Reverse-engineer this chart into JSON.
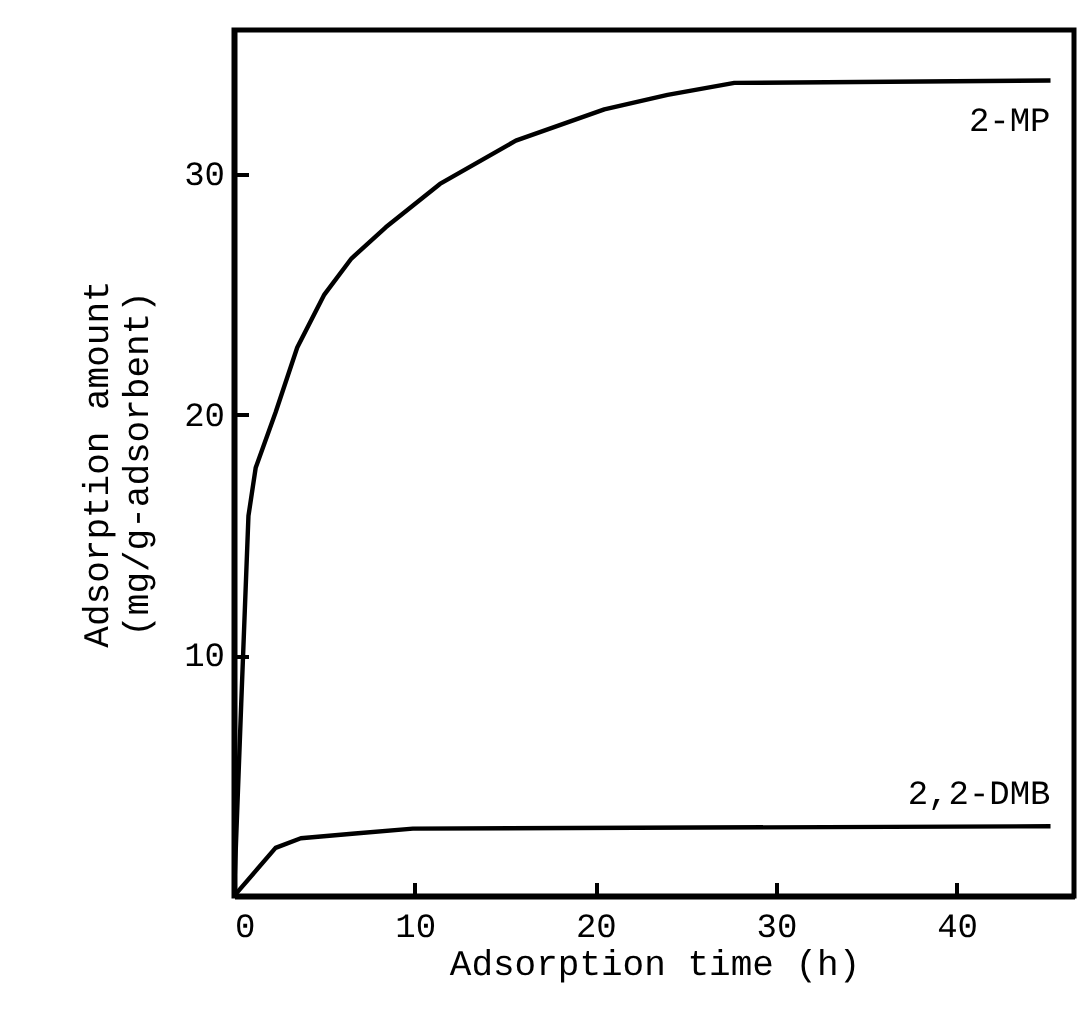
{
  "chart_data": {
    "type": "line",
    "xlabel": "Adsorption time (h)",
    "ylabel": "Adsorption amount\n(mg/g-adsorbent)",
    "xlim": [
      0,
      46.5
    ],
    "ylim": [
      0,
      36
    ],
    "xticks": [
      0,
      10,
      20,
      30,
      40
    ],
    "yticks": [
      10,
      20,
      30
    ],
    "grid": false,
    "marker": "none",
    "line_style": "solid",
    "series": [
      {
        "name": "2-MP",
        "color": "#000000",
        "x": [
          0,
          0.4,
          0.8,
          1.2,
          2.3,
          3.5,
          5,
          6.5,
          8.4,
          11.4,
          15.6,
          20.5,
          24,
          27.7,
          45.2
        ],
        "values": [
          0,
          8,
          15.8,
          17.8,
          20.1,
          22.8,
          25,
          26.5,
          27.8,
          29.6,
          31.4,
          32.7,
          33.3,
          33.8,
          33.9
        ]
      },
      {
        "name": "2,2-DMB",
        "color": "#000000",
        "x": [
          0,
          2.3,
          3.7,
          6.7,
          9.9,
          45.2
        ],
        "values": [
          0,
          2.0,
          2.4,
          2.6,
          2.8,
          2.9
        ]
      }
    ]
  }
}
